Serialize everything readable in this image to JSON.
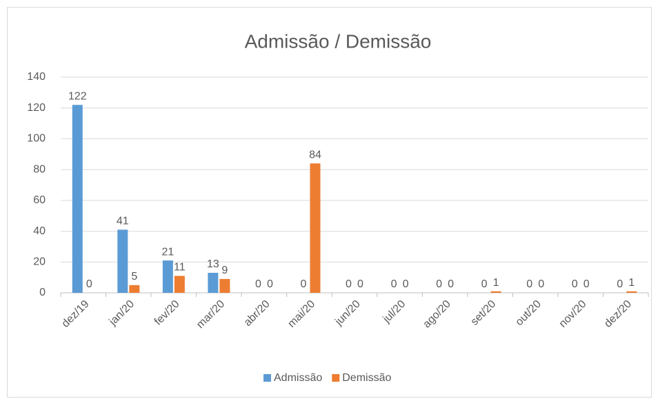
{
  "chart_data": {
    "type": "bar",
    "title": "Admissão / Demissão",
    "categories": [
      "dez/19",
      "jan/20",
      "fev/20",
      "mar/20",
      "abr/20",
      "mai/20",
      "jun/20",
      "jul/20",
      "ago/20",
      "set/20",
      "out/20",
      "nov/20",
      "dez/20"
    ],
    "series": [
      {
        "name": "Admissão",
        "color": "#5b9bd5",
        "values": [
          122,
          41,
          21,
          13,
          0,
          0,
          0,
          0,
          0,
          0,
          0,
          0,
          0
        ]
      },
      {
        "name": "Demissão",
        "color": "#ed7d31",
        "values": [
          0,
          5,
          11,
          9,
          0,
          84,
          0,
          0,
          0,
          1,
          0,
          0,
          1
        ]
      }
    ],
    "ylim": [
      0,
      140
    ],
    "yticks": [
      0,
      20,
      40,
      60,
      80,
      100,
      120,
      140
    ],
    "grid": true,
    "legend": "bottom"
  }
}
